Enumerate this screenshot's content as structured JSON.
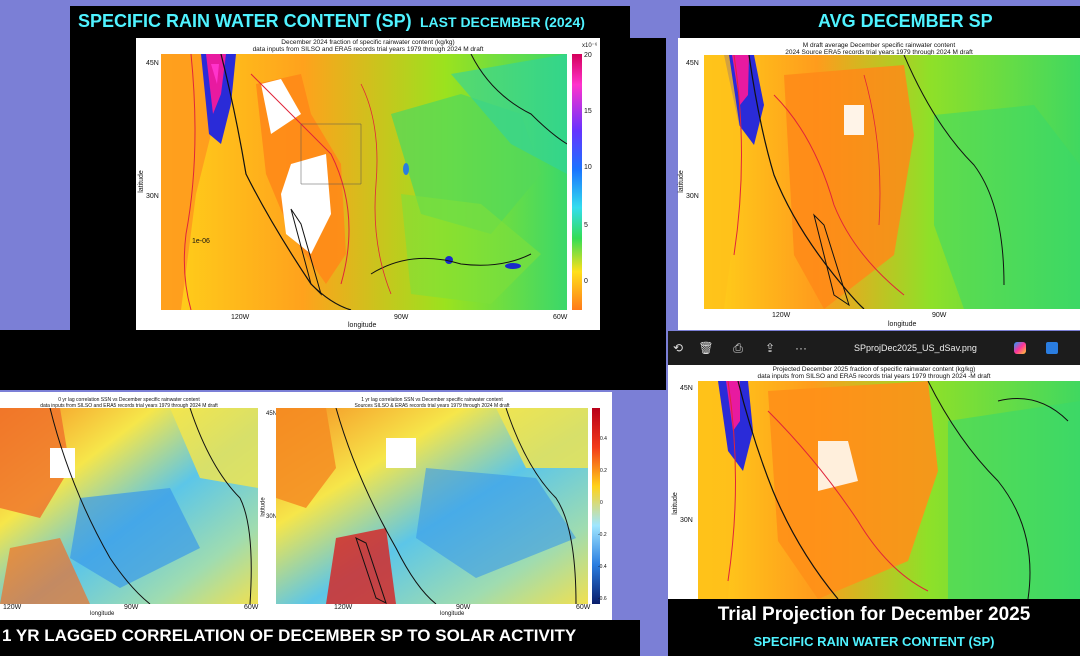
{
  "headers": {
    "main_left_a": "SPECIFIC RAIN WATER CONTENT (SP)",
    "main_left_b": "LAST DECEMBER (2024)",
    "main_right": "AVG DECEMBER SP",
    "bottom_left": "1 YR LAGGED CORRELATION OF DECEMBER SP TO SOLAR ACTIVITY",
    "bottom_right_1": "Trial Projection for December 2025",
    "bottom_right_2": "SPECIFIC RAIN WATER CONTENT (SP)"
  },
  "map_top_left": {
    "title1": "December 2024 fraction of specific rainwater content (kg/kg)",
    "title2": "data inputs from SILSO and ERA5 records   trial years 1979 through 2024   M draft",
    "lat45": "45N",
    "lat30": "30N",
    "lon120": "120W",
    "lon90": "90W",
    "lon60": "60W",
    "xlabel": "longitude",
    "ylabel": "latitude",
    "cb_exp": "x10⁻⁶",
    "cb": [
      "20",
      "15",
      "10",
      "5",
      "0"
    ],
    "annot": "1e-06"
  },
  "map_top_right": {
    "title1": "M draft average December specific rainwater content",
    "title2": "2024   Source ERA5 records   trial years 1979 through 2024   M draft",
    "lat45": "45N",
    "lat30": "30N",
    "lon120": "120W",
    "lon90": "90W",
    "xlabel": "longitude",
    "ylabel": "latitude"
  },
  "map_corr_left": {
    "title1": "0 yr lag correlation SSN vs December specific rainwater content",
    "title2": "data inputs from SILSO and ERA5 records   trial years 1979 through 2024   M draft",
    "lon120": "120W",
    "lon90": "90W",
    "lon60": "60W",
    "xlabel": "longitude"
  },
  "map_corr_right": {
    "title1": "1 yr lag correlation SSN vs December specific rainwater content",
    "title2": "Sources SILSO & ERA5 records   trial years 1979 through 2024   M draft",
    "lat45": "45N",
    "lat30": "30N",
    "lon120": "120W",
    "lon90": "90W",
    "lon60": "60W",
    "xlabel": "longitude",
    "ylabel": "latitude",
    "cb": [
      "0.4",
      "0.2",
      "0",
      "-0.2",
      "-0.4",
      "-0.6"
    ]
  },
  "viewer": {
    "filename": "SPprojDec2025_US_dSav.png",
    "more": "···",
    "title1": "Projected December 2025 fraction of specific rainwater content (kg/kg)",
    "title2": "data inputs from SILSO and ERA5 records   trial years 1979 through 2024   -M draft",
    "lat45": "45N",
    "lat30": "30N",
    "ylabel": "latitude"
  },
  "colors": {
    "header_text": "#4ff2ff",
    "background": "#7b7fd6",
    "contour_red": "#e0243a"
  },
  "icons": [
    "rotate-icon",
    "delete-icon",
    "print-icon",
    "share-icon",
    "more-icon",
    "copilot-icon",
    "edit-icon"
  ]
}
